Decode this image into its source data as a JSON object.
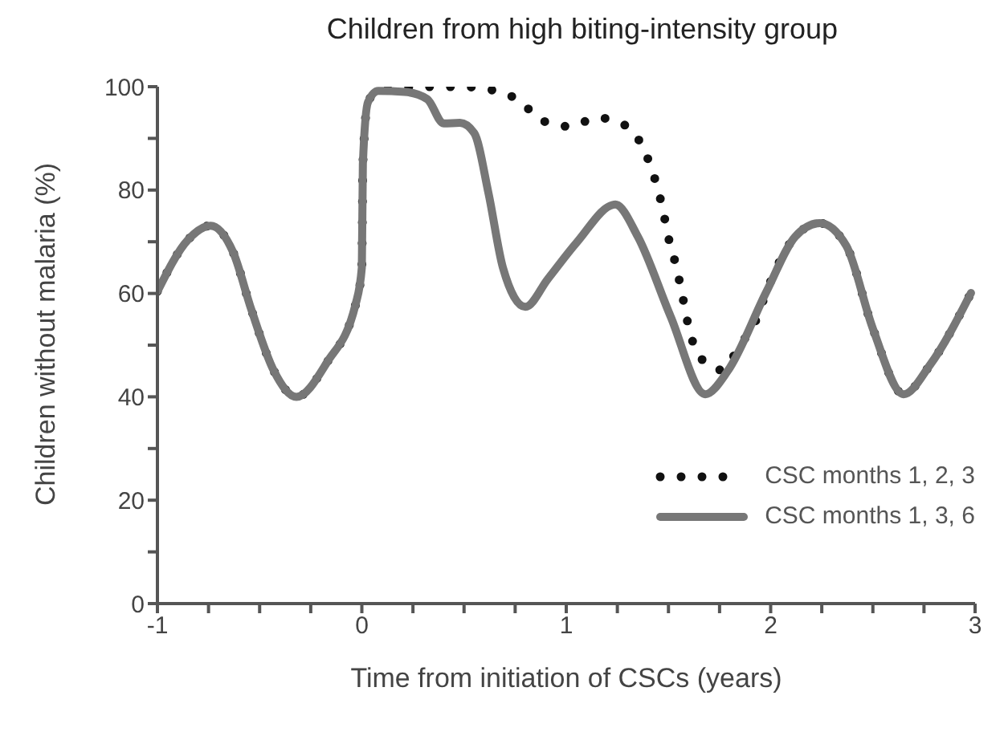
{
  "chart_data": {
    "type": "line",
    "title": "Children from high biting-intensity group",
    "xlabel": "Time from initiation of CSCs (years)",
    "ylabel": "Children without malaria (%)",
    "xlim": [
      -1,
      3
    ],
    "xticks": [
      -1,
      {
        "value": -0.75,
        "label": null
      },
      {
        "value": -0.5,
        "label": null
      },
      {
        "value": -0.25,
        "label": null
      },
      0,
      {
        "value": 0.25,
        "label": null
      },
      {
        "value": 0.5,
        "label": null
      },
      {
        "value": 0.75,
        "label": null
      },
      1,
      {
        "value": 1.25,
        "label": null
      },
      {
        "value": 1.5,
        "label": null
      },
      {
        "value": 1.75,
        "label": null
      },
      2,
      {
        "value": 2.25,
        "label": null
      },
      {
        "value": 2.5,
        "label": null
      },
      {
        "value": 2.75,
        "label": null
      },
      3
    ],
    "ylim": [
      0,
      100
    ],
    "yticks": [
      0,
      {
        "value": 10,
        "label": null
      },
      20,
      {
        "value": 30,
        "label": null
      },
      40,
      {
        "value": 50,
        "label": null
      },
      60,
      {
        "value": 70,
        "label": null
      },
      80,
      {
        "value": 90,
        "label": null
      },
      100
    ],
    "legend": "bottom right",
    "marker": "none",
    "series": [
      {
        "name": "CSC months 1, 2, 3",
        "color": "#111111",
        "line_style": "dotted",
        "x": [
          -1,
          -0.85,
          -0.74,
          -0.63,
          -0.54,
          -0.43,
          -0.32,
          -0.17,
          -0.03,
          0,
          0.005,
          0.03,
          0.08,
          0.21,
          0.35,
          0.49,
          0.63,
          0.77,
          0.88,
          1.02,
          1.15,
          1.29,
          1.38,
          1.43,
          1.47,
          1.5,
          1.54,
          1.57,
          1.6,
          1.66,
          1.76,
          1.85,
          1.93,
          1.98,
          2.12,
          2.24,
          2.37,
          2.5,
          2.65,
          2.78,
          2.98
        ],
        "values": [
          60.4,
          70.4,
          73.1,
          68,
          56.8,
          45,
          40,
          46.7,
          58,
          65,
          85,
          97,
          99.2,
          99.8,
          100,
          100,
          99.4,
          97.3,
          93.5,
          92.3,
          94,
          92.5,
          87.8,
          82.6,
          76.7,
          70.8,
          64.9,
          59.2,
          53.3,
          47.4,
          45.2,
          50,
          55,
          60.4,
          71,
          73.6,
          69.2,
          53.2,
          40.5,
          46.2,
          60.1
        ]
      },
      {
        "name": "CSC months 1, 3, 6",
        "color": "#777777",
        "line_style": "solid",
        "x": [
          -1,
          -0.85,
          -0.74,
          -0.63,
          -0.54,
          -0.43,
          -0.32,
          -0.17,
          -0.03,
          0,
          0.005,
          0.03,
          0.08,
          0.21,
          0.32,
          0.4,
          0.48,
          0.55,
          0.62,
          0.69,
          0.8,
          0.91,
          1.05,
          1.24,
          1.35,
          1.51,
          1.68,
          1.79,
          1.98,
          2.12,
          2.24,
          2.37,
          2.5,
          2.65,
          2.78,
          2.98
        ],
        "values": [
          60.4,
          70.4,
          73.1,
          68,
          56.8,
          45,
          40,
          46.7,
          58,
          65,
          85,
          97,
          99.2,
          99,
          97.6,
          92.9,
          93,
          91,
          79.3,
          65,
          57.4,
          62.8,
          69.8,
          77.2,
          71,
          55.6,
          40.5,
          45,
          60.4,
          71,
          73.6,
          69.2,
          53.2,
          40.5,
          46.2,
          60.1
        ]
      }
    ]
  }
}
